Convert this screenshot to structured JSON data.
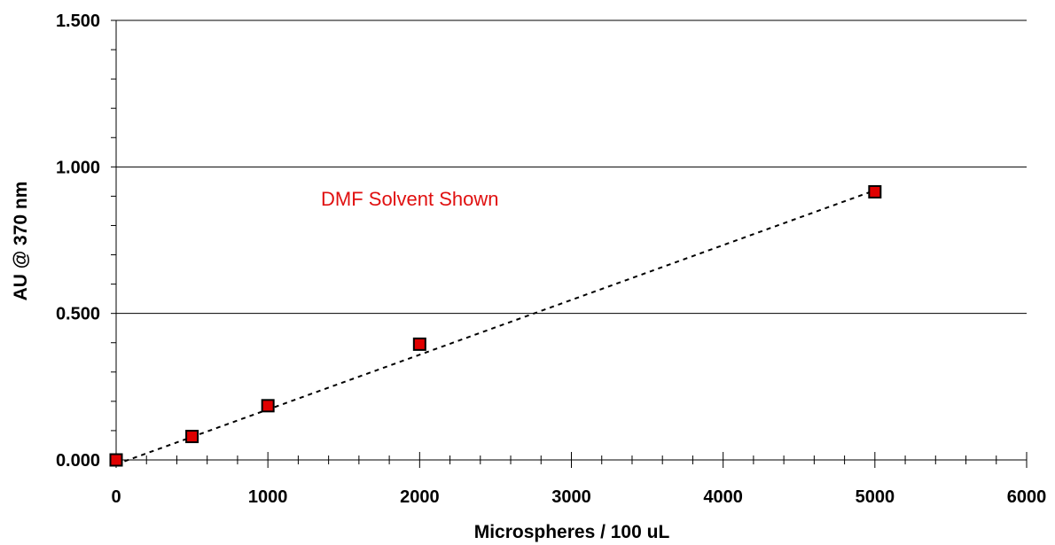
{
  "chart_data": {
    "type": "scatter",
    "xlabel": "Microspheres / 100 uL",
    "ylabel": "AU @ 370 nm",
    "xlim": [
      0,
      6000
    ],
    "ylim": [
      0,
      1.5
    ],
    "x_ticks": [
      "0",
      "1000",
      "2000",
      "3000",
      "4000",
      "5000",
      "6000"
    ],
    "y_ticks": [
      "0.000",
      "0.500",
      "1.000",
      "1.500"
    ],
    "grid": "horizontal",
    "annotation": "DMF Solvent Shown",
    "series": [
      {
        "x": [
          0,
          500,
          1000,
          2000,
          5000
        ],
        "y": [
          0.0,
          0.08,
          0.185,
          0.395,
          0.915
        ],
        "marker": "square",
        "color": "#e00000"
      }
    ],
    "trendline": {
      "style": "dotted",
      "x": [
        0,
        5000
      ],
      "y": [
        -0.015,
        0.92
      ]
    },
    "annotation_color": "#e01010"
  }
}
